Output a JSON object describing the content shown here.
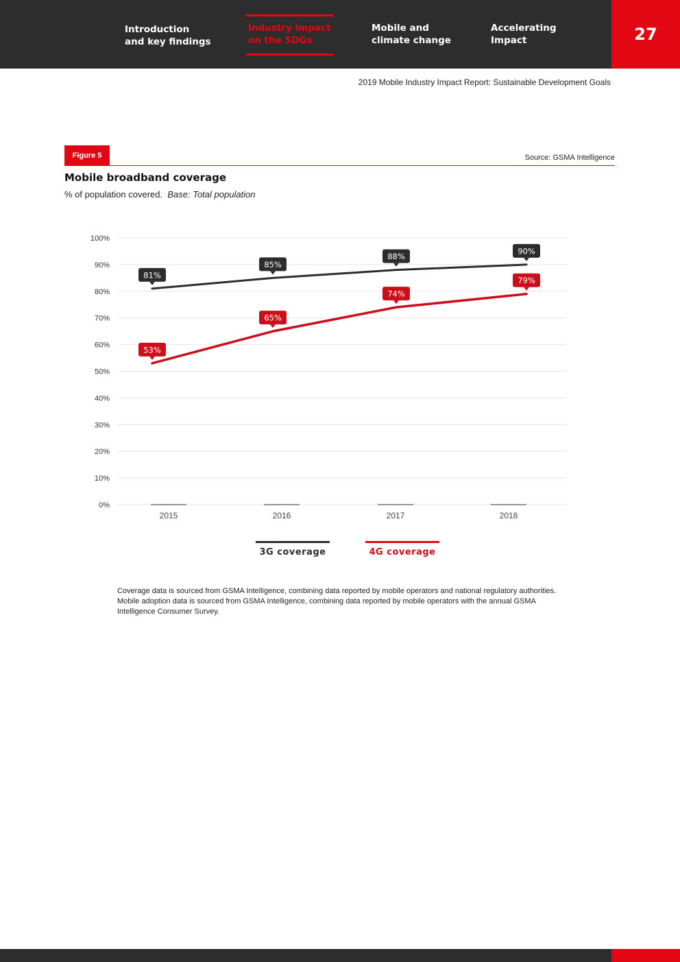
{
  "nav": {
    "intro": [
      "Introduction",
      "and key findings"
    ],
    "industry": [
      "Industry impact",
      "on the SDGs"
    ],
    "mobile": [
      "Mobile and",
      "climate change"
    ],
    "accel": [
      "Accelerating",
      "Impact"
    ],
    "page_number": "27"
  },
  "report_title": "2019 Mobile Industry Impact Report: Sustainable Development Goals",
  "figure": {
    "tab_label": "Figure 5",
    "source": "Source: GSMA Intelligence",
    "title": "Mobile broadband coverage",
    "subtitle": "% of population covered.",
    "subtitle_italic": "Base: Total population"
  },
  "colors": {
    "dark": "#2d2d2d",
    "red": "#e30613",
    "series_red": "#cc0e1a"
  },
  "chart_data": {
    "type": "line",
    "title": "Mobile broadband coverage",
    "xlabel": "",
    "ylabel": "% of population covered",
    "categories": [
      "2015",
      "2016",
      "2017",
      "2018"
    ],
    "ylim": [
      0,
      100
    ],
    "yticks": [
      "0%",
      "10%",
      "20%",
      "30%",
      "40%",
      "50%",
      "60%",
      "70%",
      "80%",
      "90%",
      "100%"
    ],
    "grid": true,
    "legend": "bottom",
    "series": [
      {
        "name": "3G coverage",
        "values": [
          81,
          85,
          88,
          90
        ],
        "labels": [
          "81%",
          "85%",
          "88%",
          "90%"
        ],
        "color": "#2d2d2d"
      },
      {
        "name": "4G coverage",
        "values": [
          53,
          65,
          74,
          79
        ],
        "labels": [
          "53%",
          "65%",
          "74%",
          "79%"
        ],
        "color": "#cc0e1a"
      }
    ]
  },
  "footnote": "Coverage data is sourced from GSMA Intelligence, combining data reported by mobile operators and national regulatory authorities. Mobile adoption data is sourced from GSMA Intelligence, combining data reported by mobile operators with the annual GSMA Intelligence Consumer Survey."
}
